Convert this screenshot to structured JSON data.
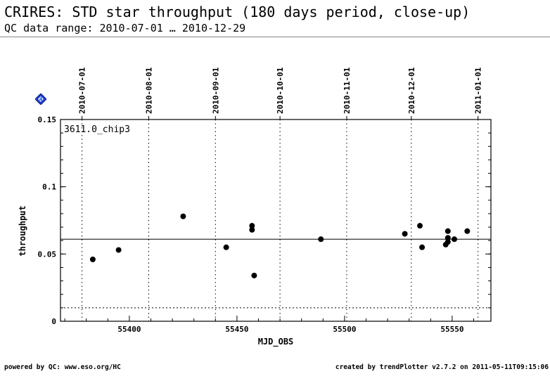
{
  "header": {
    "title": "CRIRES: STD star throughput (180 days period, close-up)",
    "subtitle": "QC data range: 2010-07-01 … 2010-12-29"
  },
  "footer": {
    "left": "powered by QC: www.eso.org/HC",
    "right": "created by trendPlotter v2.7.2 on 2011-05-11T09:15:06"
  },
  "icons": {
    "info": "blue-diamond-info-icon"
  },
  "chart_data": {
    "type": "scatter",
    "panel_label": "3611.0_chip3",
    "xlabel": "MJD_OBS",
    "ylabel": "throughput",
    "xlim": [
      55368,
      55568
    ],
    "ylim": [
      0,
      0.15
    ],
    "x_ticks": [
      55400,
      55450,
      55500,
      55550
    ],
    "y_ticks": [
      0,
      0.05,
      0.1,
      0.15
    ],
    "y_tick_labels": [
      "0",
      "0.05",
      "0.1",
      "0.15"
    ],
    "date_ticks": [
      {
        "x": 55378,
        "label": "2010-07-01"
      },
      {
        "x": 55409,
        "label": "2010-08-01"
      },
      {
        "x": 55440,
        "label": "2010-09-01"
      },
      {
        "x": 55470,
        "label": "2010-10-01"
      },
      {
        "x": 55501,
        "label": "2010-11-01"
      },
      {
        "x": 55531,
        "label": "2010-12-01"
      },
      {
        "x": 55562,
        "label": "2011-01-01"
      }
    ],
    "reference_lines": [
      0.061,
      0.01
    ],
    "points": [
      {
        "x": 55383,
        "y": 0.046
      },
      {
        "x": 55395,
        "y": 0.053
      },
      {
        "x": 55425,
        "y": 0.078
      },
      {
        "x": 55445,
        "y": 0.055
      },
      {
        "x": 55457,
        "y": 0.071
      },
      {
        "x": 55457,
        "y": 0.068
      },
      {
        "x": 55458,
        "y": 0.034
      },
      {
        "x": 55489,
        "y": 0.061
      },
      {
        "x": 55528,
        "y": 0.065
      },
      {
        "x": 55535,
        "y": 0.071
      },
      {
        "x": 55536,
        "y": 0.055
      },
      {
        "x": 55547,
        "y": 0.057
      },
      {
        "x": 55548,
        "y": 0.059
      },
      {
        "x": 55548,
        "y": 0.062
      },
      {
        "x": 55548,
        "y": 0.067
      },
      {
        "x": 55551,
        "y": 0.061
      },
      {
        "x": 55557,
        "y": 0.067
      }
    ]
  }
}
